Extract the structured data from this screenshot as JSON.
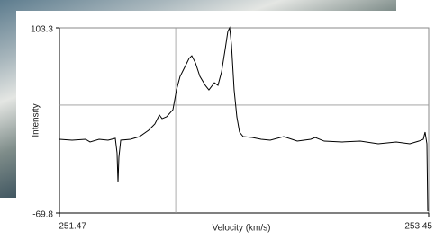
{
  "chart_data": {
    "type": "line",
    "x_label": "Velocity (km/s)",
    "y_label": "Intensity",
    "x": [
      -251.5,
      -234.2,
      -215.8,
      -209.6,
      -197.3,
      -185.0,
      -175.1,
      -172.7,
      -171.4,
      -170.2,
      -167.7,
      -154.2,
      -141.9,
      -129.6,
      -121.0,
      -114.8,
      -111.1,
      -105.0,
      -96.3,
      -91.4,
      -86.5,
      -80.3,
      -74.2,
      -70.5,
      -65.5,
      -59.4,
      -52.0,
      -47.1,
      -39.6,
      -34.7,
      -29.8,
      -24.9,
      -21.2,
      -18.7,
      -16.2,
      -12.6,
      -8.9,
      -5.2,
      -0.2,
      12.1,
      24.4,
      36.8,
      55.2,
      73.7,
      92.1,
      98.3,
      110.6,
      135.2,
      159.9,
      184.5,
      209.1,
      227.6,
      239.9,
      246.1,
      248.5,
      251.0,
      252.2
    ],
    "values": [
      -0.9,
      -1.7,
      -0.9,
      -3.4,
      -0.9,
      -1.7,
      0.0,
      -13.5,
      -41.2,
      -17.7,
      -1.7,
      -0.9,
      1.6,
      7.5,
      13.4,
      21.8,
      18.4,
      20.1,
      26.8,
      45.3,
      57.9,
      66.3,
      74.7,
      77.2,
      70.5,
      57.9,
      49.5,
      45.3,
      52.0,
      49.5,
      62.1,
      83.1,
      99.9,
      103.3,
      87.3,
      45.3,
      20.1,
      5.8,
      1.6,
      0.8,
      -0.9,
      -1.7,
      1.6,
      -2.6,
      -0.9,
      0.8,
      -2.6,
      -3.4,
      -2.6,
      -5.1,
      -3.4,
      -5.1,
      -2.6,
      -0.9,
      5.8,
      -5.1,
      -68.1
    ],
    "color": "#000000",
    "xlim": [
      -251.47,
      253.45
    ],
    "ylim": [
      -69.8,
      103.3
    ],
    "xticks": [
      -251.47,
      253.45
    ],
    "yticks": [
      -69.8,
      103.3
    ],
    "crosshair": {
      "x": -92.5,
      "y": 31.1
    }
  }
}
